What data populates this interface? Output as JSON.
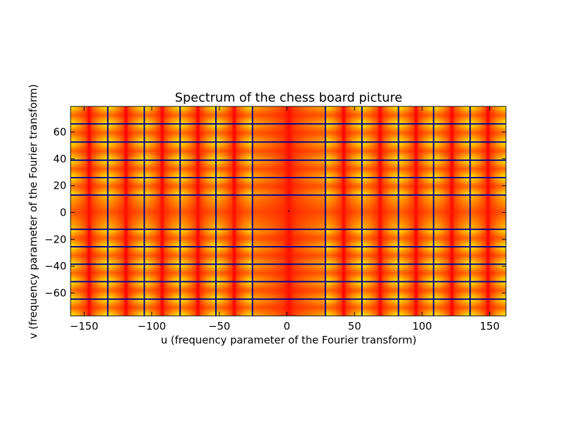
{
  "chart_data": {
    "type": "heatmap",
    "title": "Spectrum of the chess board picture",
    "xlabel": "u (frequency parameter of the Fourier transform)",
    "ylabel": "v (frequency parameter of the Fourier transform)",
    "xlim": [
      -160,
      162
    ],
    "ylim": [
      -77,
      79
    ],
    "xticks": [
      -150,
      -100,
      -50,
      0,
      50,
      100,
      150
    ],
    "yticks": [
      -60,
      -40,
      -20,
      0,
      20,
      40,
      60
    ],
    "xtick_labels": [
      "−150",
      "−100",
      "−50",
      "0",
      "50",
      "100",
      "150"
    ],
    "ytick_labels": [
      "−60",
      "−40",
      "−20",
      "0",
      "20",
      "40",
      "60"
    ],
    "grid": false,
    "colormap": "jet",
    "colors": {
      "low": "#00008f",
      "mid": "#ffff00",
      "high": "#ff0000",
      "peak": "#8b0000"
    },
    "cell_boundaries_u": [
      -132.5,
      -105.5,
      -79,
      -52.5,
      -25.5,
      28.5,
      55.5,
      82.5,
      108.5,
      135.5
    ],
    "cell_boundaries_v": [
      66,
      52.5,
      39,
      26,
      13,
      -12.5,
      -25.5,
      -38.5,
      -51.5,
      -64.5
    ]
  }
}
